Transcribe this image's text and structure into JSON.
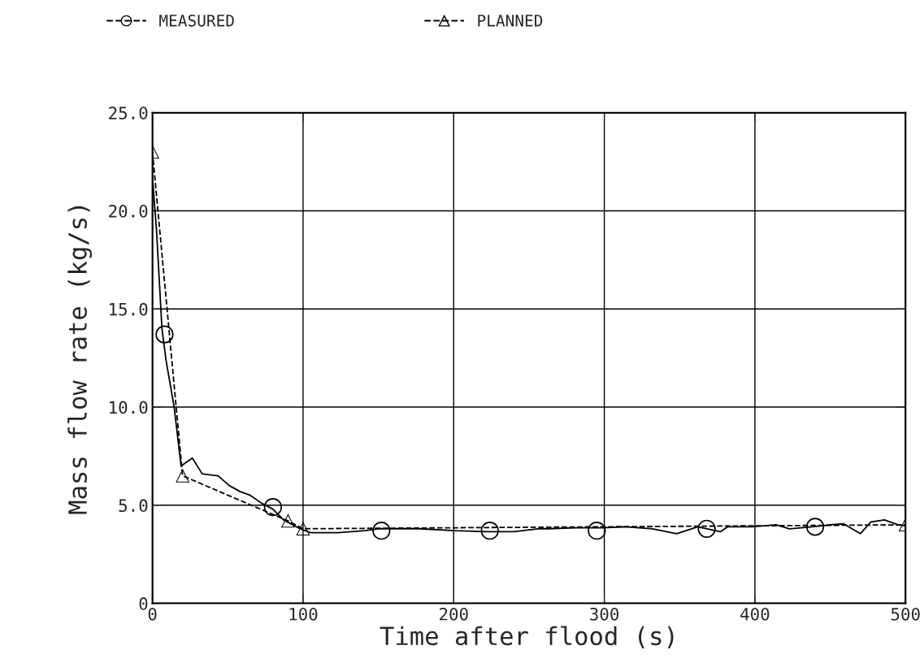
{
  "chart_data": {
    "type": "line",
    "xlabel": "Time after flood (s)",
    "ylabel": "Mass flow rate (kg/s)",
    "xlim": [
      0,
      500
    ],
    "ylim": [
      0,
      25
    ],
    "xticks": [
      0,
      100,
      200,
      300,
      400,
      500
    ],
    "yticks": [
      {
        "value": 0,
        "label": "0"
      },
      {
        "value": 5,
        "label": "5.0"
      },
      {
        "value": 10,
        "label": "10.0"
      },
      {
        "value": 15,
        "label": "15.0"
      },
      {
        "value": 20,
        "label": "20.0"
      },
      {
        "value": 25,
        "label": "25.0"
      }
    ],
    "grid": true,
    "legend": "top left",
    "series": [
      {
        "color": "#000000",
        "line_style": "solid",
        "marker": "none",
        "x": [
          0,
          2.7,
          6.3,
          9,
          14.4,
          19,
          26.5,
          33,
          43.6,
          51,
          58,
          65,
          72.5,
          80,
          87,
          98,
          105,
          123,
          141,
          150,
          177,
          201,
          222,
          240,
          256,
          263,
          281,
          299,
          314,
          332,
          348,
          362,
          377,
          382,
          398,
          414,
          423,
          438,
          450,
          459,
          470,
          477,
          486,
          495,
          500
        ],
        "values": [
          21.7,
          19.0,
          14.0,
          12.4,
          10.0,
          7.0,
          7.4,
          6.6,
          6.5,
          6.0,
          5.7,
          5.5,
          5.1,
          4.8,
          4.25,
          3.8,
          3.6,
          3.6,
          3.7,
          3.8,
          3.8,
          3.7,
          3.65,
          3.65,
          3.8,
          3.8,
          3.85,
          3.85,
          3.9,
          3.8,
          3.55,
          3.9,
          3.65,
          3.9,
          3.9,
          4.0,
          3.8,
          3.9,
          4.0,
          4.05,
          3.55,
          4.15,
          4.25,
          4.0,
          3.95
        ]
      },
      {
        "type": "scatter",
        "name": "MEASURED",
        "color": "#000000",
        "marker": "circle",
        "line_style": "dashed",
        "x": [
          8,
          80,
          152,
          224,
          295,
          368,
          440
        ],
        "values": [
          13.7,
          4.9,
          3.7,
          3.7,
          3.7,
          3.8,
          3.9
        ]
      },
      {
        "name": "PLANNED",
        "color": "#000000",
        "marker": "triangle",
        "line_style": "dashed",
        "x": [
          0,
          20,
          90,
          100,
          500
        ],
        "values": [
          23.0,
          6.5,
          4.2,
          3.8,
          4.0
        ]
      }
    ]
  }
}
